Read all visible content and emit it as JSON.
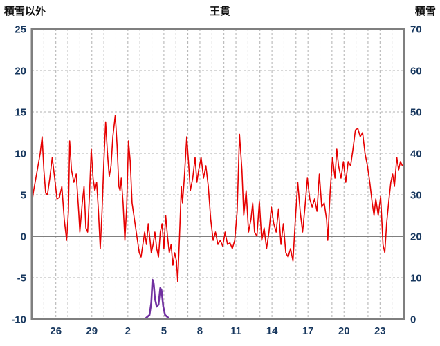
{
  "header": {
    "left_axis_title": "積雪以外",
    "chart_title": "王貫",
    "right_axis_title": "積雪"
  },
  "chart_data": {
    "type": "line",
    "title": "王貫",
    "grid": true,
    "legend_position": "none",
    "colors": {
      "background": "#ffffff",
      "grid": "#b0b0b0",
      "border": "#7f7f7f",
      "zero_line": "#7f7f7f",
      "tick_label": "#17375e",
      "title": "#111111"
    },
    "left_axis": {
      "label": "積雪以外",
      "min": -10,
      "max": 25,
      "ticks": [
        25,
        20,
        15,
        10,
        5,
        0,
        -5,
        -10
      ]
    },
    "right_axis": {
      "label": "積雪",
      "min": 0,
      "max": 70,
      "ticks": [
        70,
        60,
        50,
        40,
        30,
        20,
        10,
        0
      ]
    },
    "x_axis": {
      "tick_labels": [
        "26",
        "29",
        "2",
        "5",
        "8",
        "11",
        "14",
        "17",
        "20",
        "23"
      ],
      "label_day_positions": [
        2,
        5,
        8,
        11,
        14,
        17,
        20,
        23,
        26,
        29
      ],
      "days_total": 31,
      "gridline_every_days": 1
    },
    "series": [
      {
        "name": "積雪",
        "axis": "right",
        "color": "#7030a0",
        "points": [
          [
            0,
            0
          ],
          [
            9.4,
            0
          ],
          [
            9.6,
            0.5
          ],
          [
            9.8,
            1
          ],
          [
            9.95,
            4
          ],
          [
            10.05,
            9.5
          ],
          [
            10.15,
            8.5
          ],
          [
            10.25,
            5
          ],
          [
            10.4,
            3
          ],
          [
            10.55,
            3.5
          ],
          [
            10.7,
            7.5
          ],
          [
            10.8,
            7
          ],
          [
            10.95,
            3
          ],
          [
            11.1,
            1
          ],
          [
            11.3,
            0.5
          ],
          [
            11.5,
            0
          ],
          [
            30.86,
            0
          ]
        ]
      },
      {
        "name": "積雪以外",
        "axis": "left",
        "color": "#e60000",
        "points": [
          [
            0,
            4
          ],
          [
            0.15,
            5.5
          ],
          [
            0.4,
            7.5
          ],
          [
            0.7,
            10
          ],
          [
            0.86,
            12
          ],
          [
            1,
            8
          ],
          [
            1.15,
            5.2
          ],
          [
            1.3,
            5
          ],
          [
            1.5,
            7
          ],
          [
            1.7,
            9.5
          ],
          [
            1.9,
            7
          ],
          [
            2.1,
            4.5
          ],
          [
            2.3,
            4.7
          ],
          [
            2.5,
            6
          ],
          [
            2.7,
            2
          ],
          [
            2.9,
            -0.5
          ],
          [
            3.05,
            3
          ],
          [
            3.15,
            11.5
          ],
          [
            3.3,
            8
          ],
          [
            3.5,
            6.5
          ],
          [
            3.7,
            7.5
          ],
          [
            3.9,
            3
          ],
          [
            4,
            0.5
          ],
          [
            4.2,
            4
          ],
          [
            4.35,
            6
          ],
          [
            4.5,
            1
          ],
          [
            4.65,
            0.5
          ],
          [
            4.8,
            5
          ],
          [
            4.95,
            10.5
          ],
          [
            5.1,
            7
          ],
          [
            5.25,
            5.5
          ],
          [
            5.4,
            6.5
          ],
          [
            5.55,
            3
          ],
          [
            5.7,
            -1.5
          ],
          [
            5.85,
            3
          ],
          [
            6,
            9
          ],
          [
            6.15,
            13.8
          ],
          [
            6.3,
            10
          ],
          [
            6.45,
            7.2
          ],
          [
            6.6,
            8.5
          ],
          [
            6.75,
            12
          ],
          [
            6.95,
            14.6
          ],
          [
            7.1,
            11
          ],
          [
            7.25,
            6
          ],
          [
            7.35,
            5.5
          ],
          [
            7.45,
            7
          ],
          [
            7.6,
            4
          ],
          [
            7.75,
            -0.5
          ],
          [
            7.9,
            3.5
          ],
          [
            8.05,
            11.5
          ],
          [
            8.2,
            9
          ],
          [
            8.35,
            4
          ],
          [
            8.5,
            2.5
          ],
          [
            8.65,
            1
          ],
          [
            8.8,
            -0.5
          ],
          [
            8.95,
            -2
          ],
          [
            9.1,
            -2.5
          ],
          [
            9.25,
            -1
          ],
          [
            9.4,
            0.5
          ],
          [
            9.55,
            -1
          ],
          [
            9.7,
            1.5
          ],
          [
            9.85,
            -0.5
          ],
          [
            9.95,
            -2
          ],
          [
            10.1,
            -1
          ],
          [
            10.25,
            0.5
          ],
          [
            10.4,
            -1.5
          ],
          [
            10.55,
            -2.5
          ],
          [
            10.7,
            0.5
          ],
          [
            10.85,
            1.5
          ],
          [
            11,
            -1.5
          ],
          [
            11.15,
            2.5
          ],
          [
            11.3,
            0
          ],
          [
            11.45,
            -2
          ],
          [
            11.6,
            -1
          ],
          [
            11.75,
            -3.5
          ],
          [
            11.9,
            -2
          ],
          [
            12.05,
            -3
          ],
          [
            12.15,
            -5.5
          ],
          [
            12.3,
            0
          ],
          [
            12.45,
            6
          ],
          [
            12.55,
            4
          ],
          [
            12.7,
            7
          ],
          [
            12.9,
            12
          ],
          [
            13.05,
            9
          ],
          [
            13.2,
            5.5
          ],
          [
            13.4,
            7
          ],
          [
            13.6,
            9.5
          ],
          [
            13.75,
            6.5
          ],
          [
            13.9,
            8
          ],
          [
            14.1,
            9.5
          ],
          [
            14.3,
            7
          ],
          [
            14.5,
            8.5
          ],
          [
            14.7,
            6
          ],
          [
            14.9,
            2
          ],
          [
            15.1,
            -0.5
          ],
          [
            15.3,
            0.5
          ],
          [
            15.5,
            -1
          ],
          [
            15.7,
            -0.5
          ],
          [
            15.9,
            -1.2
          ],
          [
            16.1,
            0.5
          ],
          [
            16.3,
            -1
          ],
          [
            16.5,
            -0.8
          ],
          [
            16.7,
            -1.5
          ],
          [
            16.9,
            -0.5
          ],
          [
            17.1,
            3
          ],
          [
            17.3,
            12.3
          ],
          [
            17.5,
            8
          ],
          [
            17.65,
            2.5
          ],
          [
            17.85,
            5.5
          ],
          [
            18.05,
            0.5
          ],
          [
            18.25,
            2
          ],
          [
            18.4,
            4
          ],
          [
            18.55,
            0.5
          ],
          [
            18.75,
            0
          ],
          [
            18.95,
            4.2
          ],
          [
            19.15,
            -0.5
          ],
          [
            19.35,
            1
          ],
          [
            19.55,
            -1.5
          ],
          [
            19.75,
            0.5
          ],
          [
            19.95,
            3.5
          ],
          [
            20.15,
            1.5
          ],
          [
            20.35,
            0.5
          ],
          [
            20.55,
            3.3
          ],
          [
            20.75,
            -1
          ],
          [
            20.95,
            1.5
          ],
          [
            21.15,
            -2
          ],
          [
            21.35,
            -2.5
          ],
          [
            21.55,
            -1.5
          ],
          [
            21.75,
            -3
          ],
          [
            21.95,
            2
          ],
          [
            22.15,
            6.5
          ],
          [
            22.35,
            3
          ],
          [
            22.55,
            0.5
          ],
          [
            22.75,
            3.5
          ],
          [
            22.95,
            7
          ],
          [
            23.15,
            4.5
          ],
          [
            23.35,
            3.5
          ],
          [
            23.55,
            4.5
          ],
          [
            23.75,
            3
          ],
          [
            23.95,
            7.5
          ],
          [
            24.15,
            3.5
          ],
          [
            24.35,
            4
          ],
          [
            24.55,
            2
          ],
          [
            24.65,
            -0.5
          ],
          [
            24.85,
            5.5
          ],
          [
            25.05,
            9.5
          ],
          [
            25.25,
            7
          ],
          [
            25.4,
            10.5
          ],
          [
            25.55,
            8.5
          ],
          [
            25.75,
            7
          ],
          [
            25.95,
            9
          ],
          [
            26.15,
            6.5
          ],
          [
            26.35,
            9
          ],
          [
            26.55,
            8.5
          ],
          [
            26.75,
            10.5
          ],
          [
            26.95,
            12.8
          ],
          [
            27.15,
            13
          ],
          [
            27.35,
            12
          ],
          [
            27.55,
            12.5
          ],
          [
            27.75,
            10
          ],
          [
            27.95,
            8.5
          ],
          [
            28.15,
            6.5
          ],
          [
            28.35,
            4
          ],
          [
            28.5,
            2.5
          ],
          [
            28.65,
            4.5
          ],
          [
            28.85,
            2.5
          ],
          [
            29.05,
            4.8
          ],
          [
            29.25,
            -1
          ],
          [
            29.4,
            -2
          ],
          [
            29.55,
            1.5
          ],
          [
            29.75,
            4.5
          ],
          [
            29.9,
            6.5
          ],
          [
            30.05,
            7.5
          ],
          [
            30.2,
            6
          ],
          [
            30.4,
            9.5
          ],
          [
            30.55,
            8
          ],
          [
            30.7,
            9
          ],
          [
            30.86,
            8.5
          ]
        ]
      }
    ],
    "zero_line": {
      "axis": "left",
      "value": 0
    }
  }
}
